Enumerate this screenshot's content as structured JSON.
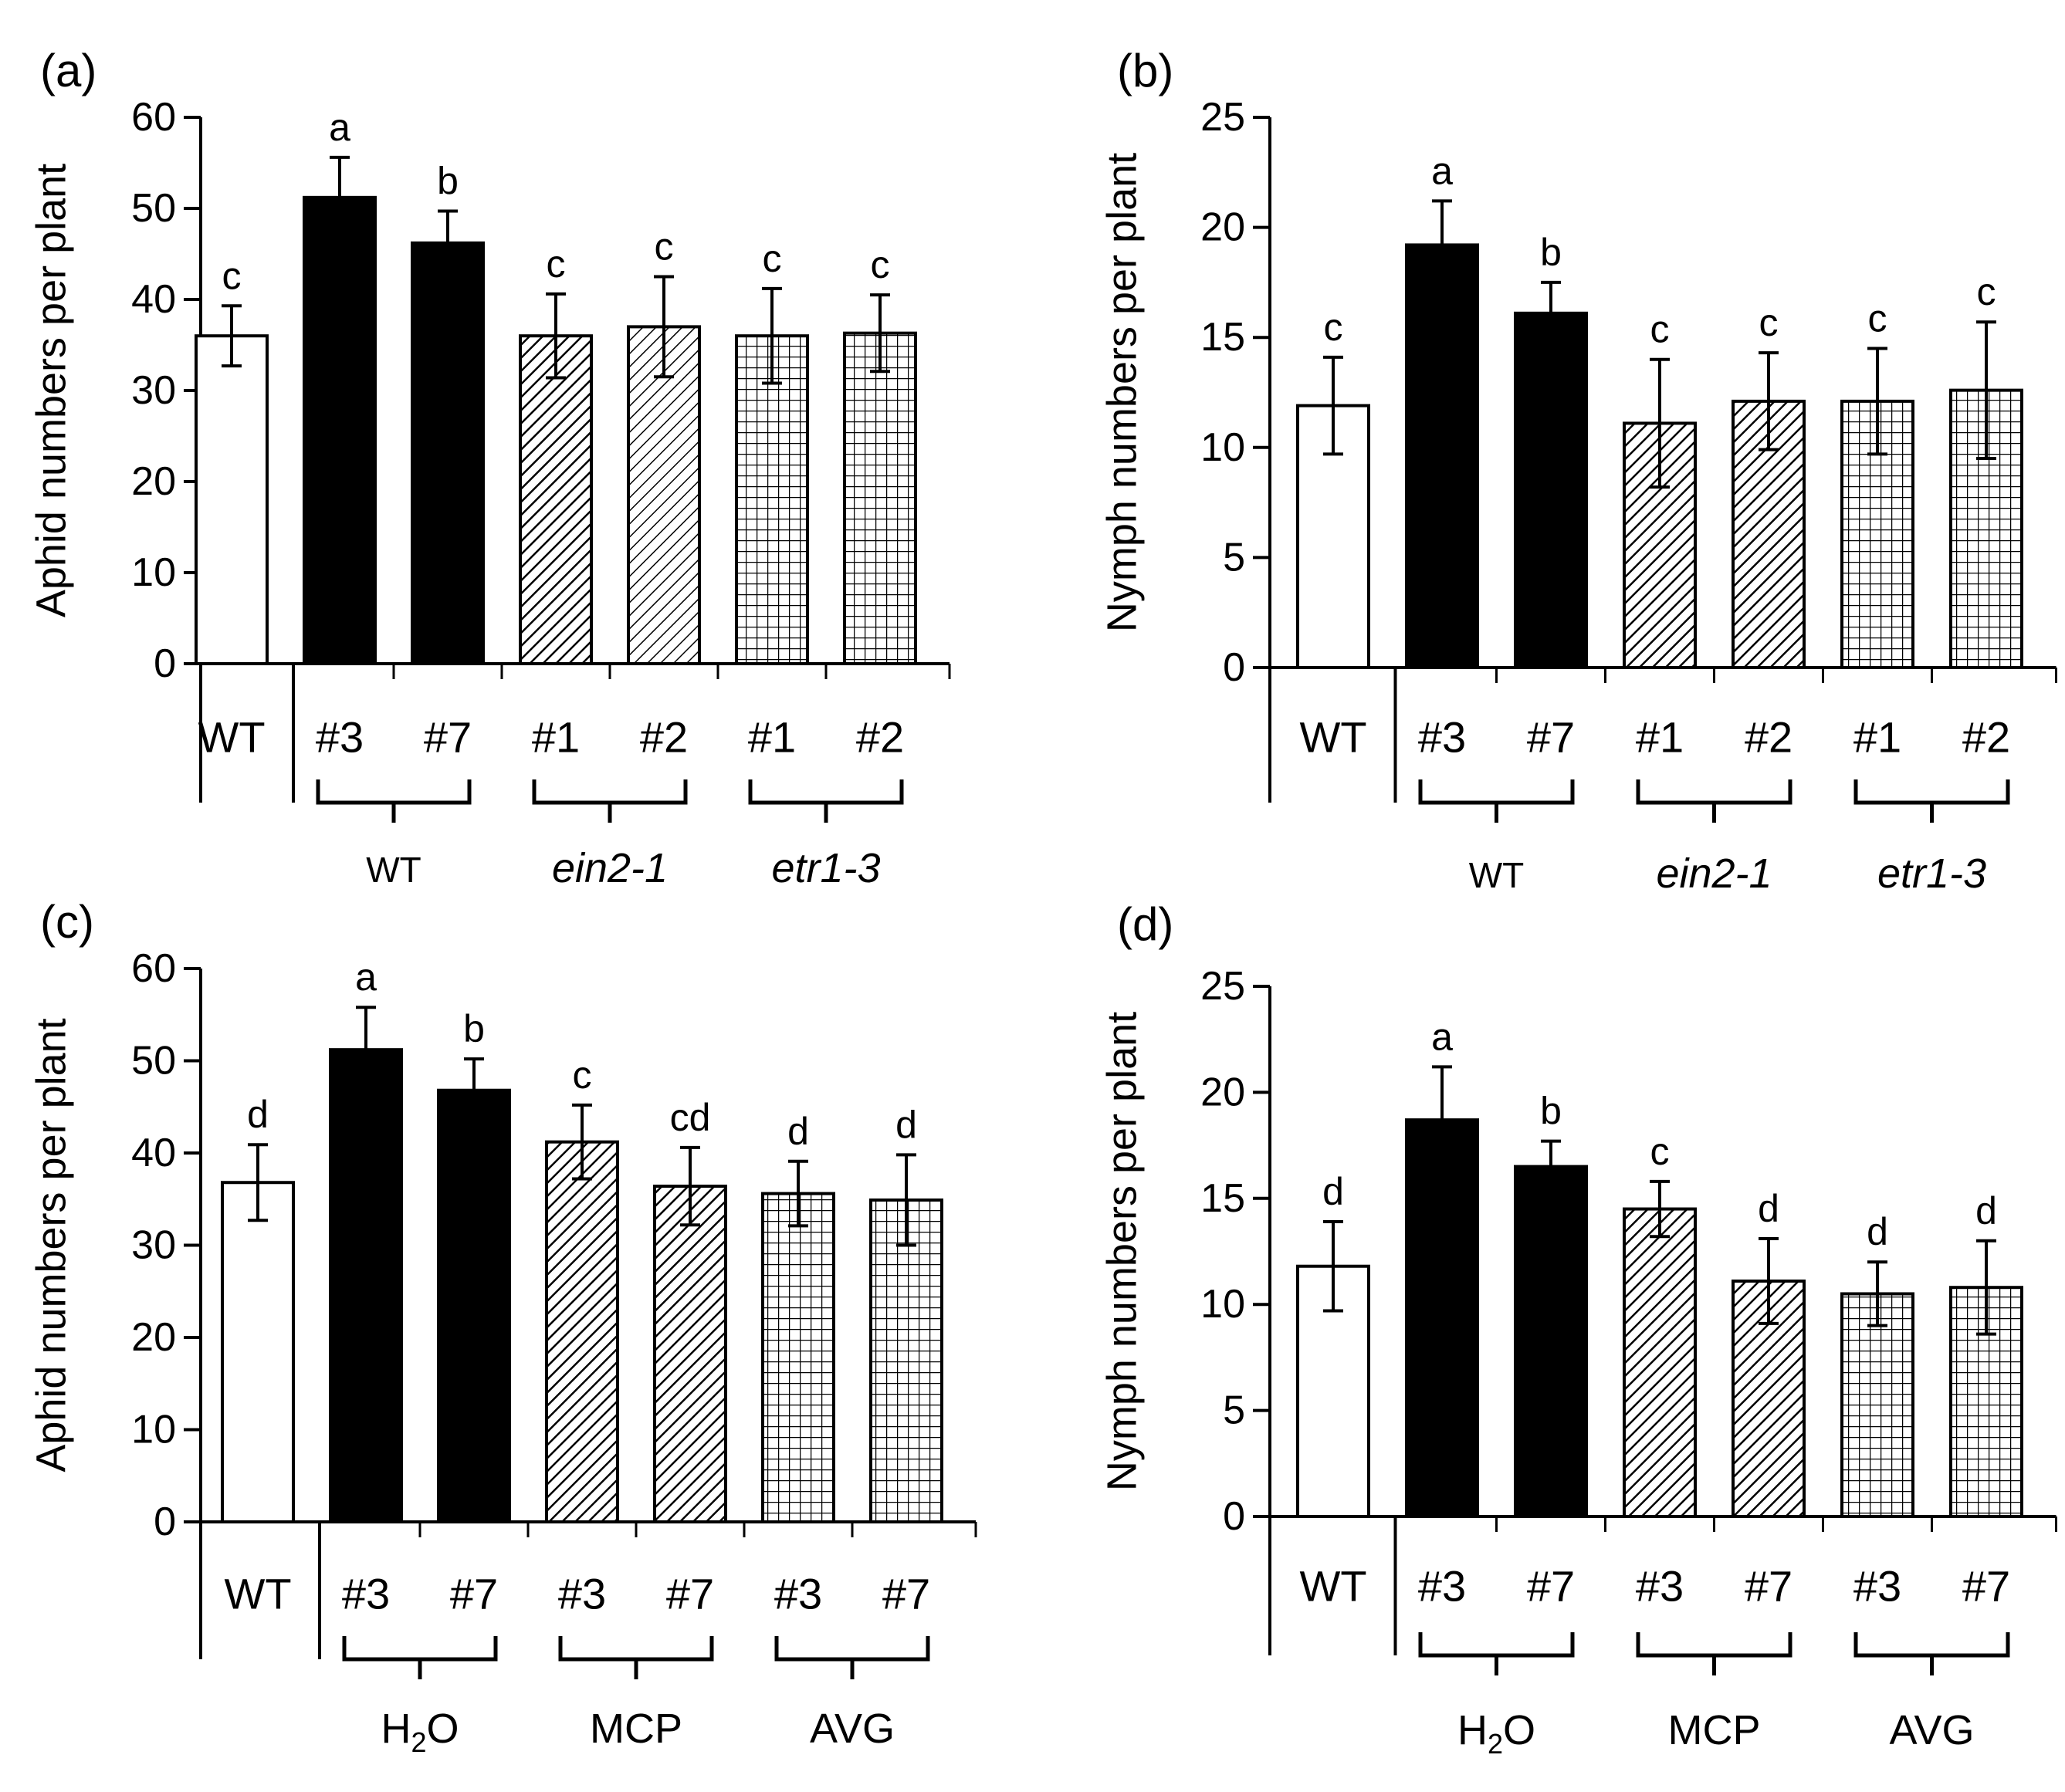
{
  "chart_data": [
    {
      "type": "bar",
      "panel_label": "(a)",
      "ylabel": "Aphid numbers per plant",
      "ylim": [
        0,
        60
      ],
      "yticks": [
        "0",
        "10",
        "20",
        "30",
        "40",
        "50",
        "60"
      ],
      "categories": [
        "WT",
        "#3",
        "#7",
        "#1",
        "#2",
        "#1",
        "#2"
      ],
      "values": [
        36,
        51.2,
        46.2,
        36,
        37,
        36,
        36.3
      ],
      "errors": [
        3.3,
        4.4,
        3.5,
        4.6,
        5.5,
        5.2,
        4.2
      ],
      "letters": [
        "c",
        "a",
        "b",
        "c",
        "c",
        "c",
        "c"
      ],
      "patterns": [
        "white",
        "black",
        "black",
        "hatch",
        "hatch-light",
        "grid",
        "grid"
      ],
      "groups": [
        {
          "label": "WT",
          "italic": false,
          "sub": ""
        },
        {
          "label": "ein2-1",
          "italic": true,
          "sub": ""
        },
        {
          "label": "etr1-3",
          "italic": true,
          "sub": ""
        }
      ]
    },
    {
      "type": "bar",
      "panel_label": "(b)",
      "ylabel": "Nymph numbers per plant",
      "ylim": [
        0,
        25
      ],
      "yticks": [
        "0",
        "5",
        "10",
        "15",
        "20",
        "25"
      ],
      "categories": [
        "WT",
        "#3",
        "#7",
        "#1",
        "#2",
        "#1",
        "#2"
      ],
      "values": [
        11.9,
        19.2,
        16.1,
        11.1,
        12.1,
        12.1,
        12.6
      ],
      "errors": [
        2.2,
        2.0,
        1.4,
        2.9,
        2.2,
        2.4,
        3.1
      ],
      "letters": [
        "c",
        "a",
        "b",
        "c",
        "c",
        "c",
        "c"
      ],
      "patterns": [
        "white",
        "black",
        "black",
        "hatch",
        "hatch",
        "grid",
        "grid"
      ],
      "groups": [
        {
          "label": "WT",
          "italic": false,
          "sub": ""
        },
        {
          "label": "ein2-1",
          "italic": true,
          "sub": ""
        },
        {
          "label": "etr1-3",
          "italic": true,
          "sub": ""
        }
      ]
    },
    {
      "type": "bar",
      "panel_label": "(c)",
      "ylabel": "Aphid numbers per plant",
      "ylim": [
        0,
        60
      ],
      "yticks": [
        "0",
        "10",
        "20",
        "30",
        "40",
        "50",
        "60"
      ],
      "categories": [
        "WT",
        "#3",
        "#7",
        "#3",
        "#7",
        "#3",
        "#7"
      ],
      "values": [
        36.8,
        51.2,
        46.8,
        41.2,
        36.4,
        35.6,
        34.9
      ],
      "errors": [
        4.1,
        4.6,
        3.4,
        4.0,
        4.2,
        3.5,
        4.9
      ],
      "letters": [
        "d",
        "a",
        "b",
        "c",
        "cd",
        "d",
        "d"
      ],
      "patterns": [
        "white",
        "black",
        "black",
        "hatch",
        "hatch",
        "grid",
        "grid"
      ],
      "groups": [
        {
          "label": "H",
          "italic": false,
          "sub": "2",
          "after": "O"
        },
        {
          "label": "MCP",
          "italic": false,
          "sub": ""
        },
        {
          "label": "AVG",
          "italic": false,
          "sub": ""
        }
      ]
    },
    {
      "type": "bar",
      "panel_label": "(d)",
      "ylabel": "Nymph numbers per plant",
      "ylim": [
        0,
        25
      ],
      "yticks": [
        "0",
        "5",
        "10",
        "15",
        "20",
        "25"
      ],
      "categories": [
        "WT",
        "#3",
        "#7",
        "#3",
        "#7",
        "#3",
        "#7"
      ],
      "values": [
        11.8,
        18.7,
        16.5,
        14.5,
        11.1,
        10.5,
        10.8
      ],
      "errors": [
        2.1,
        2.5,
        1.2,
        1.3,
        2.0,
        1.5,
        2.2
      ],
      "letters": [
        "d",
        "a",
        "b",
        "c",
        "d",
        "d",
        "d"
      ],
      "patterns": [
        "white",
        "black",
        "black",
        "hatch",
        "hatch",
        "grid",
        "grid"
      ],
      "groups": [
        {
          "label": "H",
          "italic": false,
          "sub": "2",
          "after": "O"
        },
        {
          "label": "MCP",
          "italic": false,
          "sub": ""
        },
        {
          "label": "AVG",
          "italic": false,
          "sub": ""
        }
      ]
    }
  ]
}
